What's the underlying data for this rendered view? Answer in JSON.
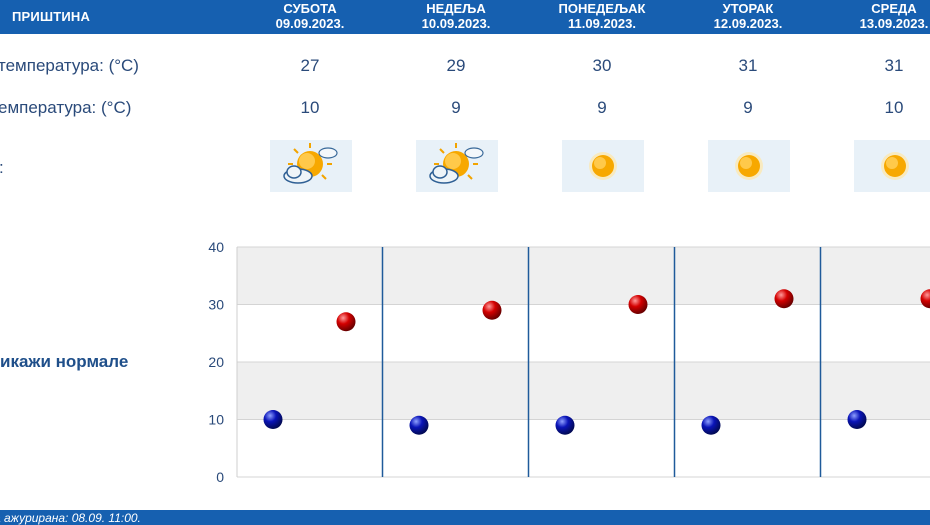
{
  "header": {
    "station": "ПРИШТИНА",
    "days": [
      {
        "name": "СУБОТА",
        "date": "09.09.2023."
      },
      {
        "name": "НЕДЕЉА",
        "date": "10.09.2023."
      },
      {
        "name": "ПОНЕДЕЉАК",
        "date": "11.09.2023."
      },
      {
        "name": "УТОРАК",
        "date": "12.09.2023."
      },
      {
        "name": "СРЕДА",
        "date": "13.09.2023."
      }
    ]
  },
  "rows": {
    "max_label": "температура: (°C)",
    "min_label": "емпература: (°C)",
    "weather_label": ":",
    "max_values": [
      "27",
      "29",
      "30",
      "31",
      "31"
    ],
    "min_values": [
      "10",
      "9",
      "9",
      "9",
      "10"
    ],
    "icons": [
      "partly-cloudy-icon",
      "partly-cloudy-icon",
      "sunny-icon",
      "sunny-icon",
      "sunny-icon"
    ]
  },
  "normals_link": "икажи нормале",
  "footer": {
    "updated": "а ажурирана:  08.09. 11:00."
  },
  "colors": {
    "header_bg": "#1660b0",
    "max_marker": "#cc0000",
    "min_marker": "#0a14a8",
    "divider": "#1f5a9a"
  },
  "chart_data": {
    "type": "scatter",
    "categories": [
      "09.09.2023.",
      "10.09.2023.",
      "11.09.2023.",
      "12.09.2023.",
      "13.09.2023."
    ],
    "series": [
      {
        "values": [
          10,
          9,
          9,
          9,
          10
        ],
        "color": "#0a14a8"
      },
      {
        "values": [
          27,
          29,
          30,
          31,
          31
        ],
        "color": "#cc0000"
      }
    ],
    "yticks": [
      0,
      10,
      20,
      30,
      40
    ],
    "ylim": [
      0,
      40
    ],
    "grid": true
  }
}
